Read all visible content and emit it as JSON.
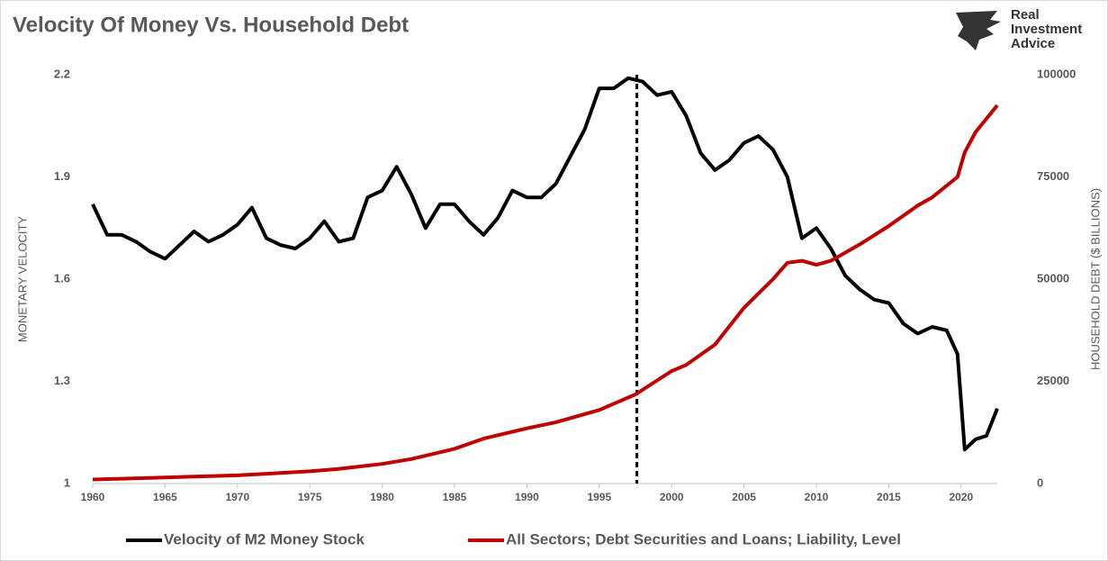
{
  "chart_data": {
    "type": "line",
    "title": "Velocity Of Money Vs. Household Debt",
    "logo_lines": [
      "Real",
      "Investment",
      "Advice"
    ],
    "ylabel": "MONETARY VELOCITY",
    "y2label": "HOUSEHOLD DEBT ($ BILLIONS)",
    "xlim": [
      1960,
      2022.5
    ],
    "xticks": [
      1960,
      1965,
      1970,
      1975,
      1980,
      1985,
      1990,
      1995,
      2000,
      2005,
      2010,
      2015,
      2020
    ],
    "ylim": [
      1,
      2.2
    ],
    "yticks": [
      1,
      1.3,
      1.6,
      1.9,
      2.2
    ],
    "y2lim": [
      0,
      100000
    ],
    "y2ticks": [
      0,
      25000,
      50000,
      75000,
      100000
    ],
    "reference_line_x": 1997.6,
    "legend": "bottom",
    "series": [
      {
        "name": "Velocity of M2 Money Stock",
        "color": "#000000",
        "axis": "y",
        "x": [
          1960,
          1961,
          1962,
          1963,
          1964,
          1965,
          1966,
          1967,
          1968,
          1969,
          1970,
          1971,
          1972,
          1973,
          1974,
          1975,
          1976,
          1977,
          1978,
          1979,
          1980,
          1981,
          1982,
          1983,
          1984,
          1985,
          1986,
          1987,
          1988,
          1989,
          1990,
          1991,
          1992,
          1993,
          1994,
          1995,
          1996,
          1997,
          1998,
          1999,
          2000,
          2001,
          2002,
          2003,
          2004,
          2005,
          2006,
          2007,
          2008,
          2009,
          2010,
          2011,
          2012,
          2013,
          2014,
          2015,
          2016,
          2017,
          2018,
          2019,
          2019.75,
          2020.25,
          2021,
          2021.75,
          2022.5
        ],
        "values": [
          1.82,
          1.73,
          1.73,
          1.71,
          1.68,
          1.66,
          1.7,
          1.74,
          1.71,
          1.73,
          1.76,
          1.81,
          1.72,
          1.7,
          1.69,
          1.72,
          1.77,
          1.71,
          1.72,
          1.84,
          1.86,
          1.93,
          1.85,
          1.75,
          1.82,
          1.82,
          1.77,
          1.73,
          1.78,
          1.86,
          1.84,
          1.84,
          1.88,
          1.96,
          2.04,
          2.16,
          2.16,
          2.19,
          2.18,
          2.14,
          2.15,
          2.08,
          1.97,
          1.92,
          1.95,
          2.0,
          2.02,
          1.98,
          1.9,
          1.72,
          1.75,
          1.69,
          1.61,
          1.57,
          1.54,
          1.53,
          1.47,
          1.44,
          1.46,
          1.45,
          1.38,
          1.1,
          1.13,
          1.14,
          1.22
        ]
      },
      {
        "name": "All Sectors; Debt Securities and Loans; Liability, Level",
        "color": "#c00000",
        "axis": "y2",
        "x": [
          1960,
          1962,
          1965,
          1967,
          1970,
          1972,
          1975,
          1977,
          1980,
          1982,
          1985,
          1987,
          1990,
          1992,
          1995,
          1997.5,
          2000,
          2001,
          2003,
          2005,
          2007,
          2008,
          2009,
          2010,
          2011,
          2012,
          2013,
          2015,
          2017,
          2018,
          2019.75,
          2020.25,
          2021,
          2022.5
        ],
        "values": [
          1000,
          1200,
          1500,
          1700,
          2000,
          2400,
          3000,
          3600,
          4800,
          6000,
          8500,
          11000,
          13500,
          15000,
          18000,
          21800,
          27500,
          29000,
          34000,
          43000,
          50000,
          54000,
          54500,
          53500,
          54500,
          56500,
          58500,
          63000,
          68000,
          70000,
          75000,
          81000,
          86000,
          92500
        ]
      }
    ]
  }
}
